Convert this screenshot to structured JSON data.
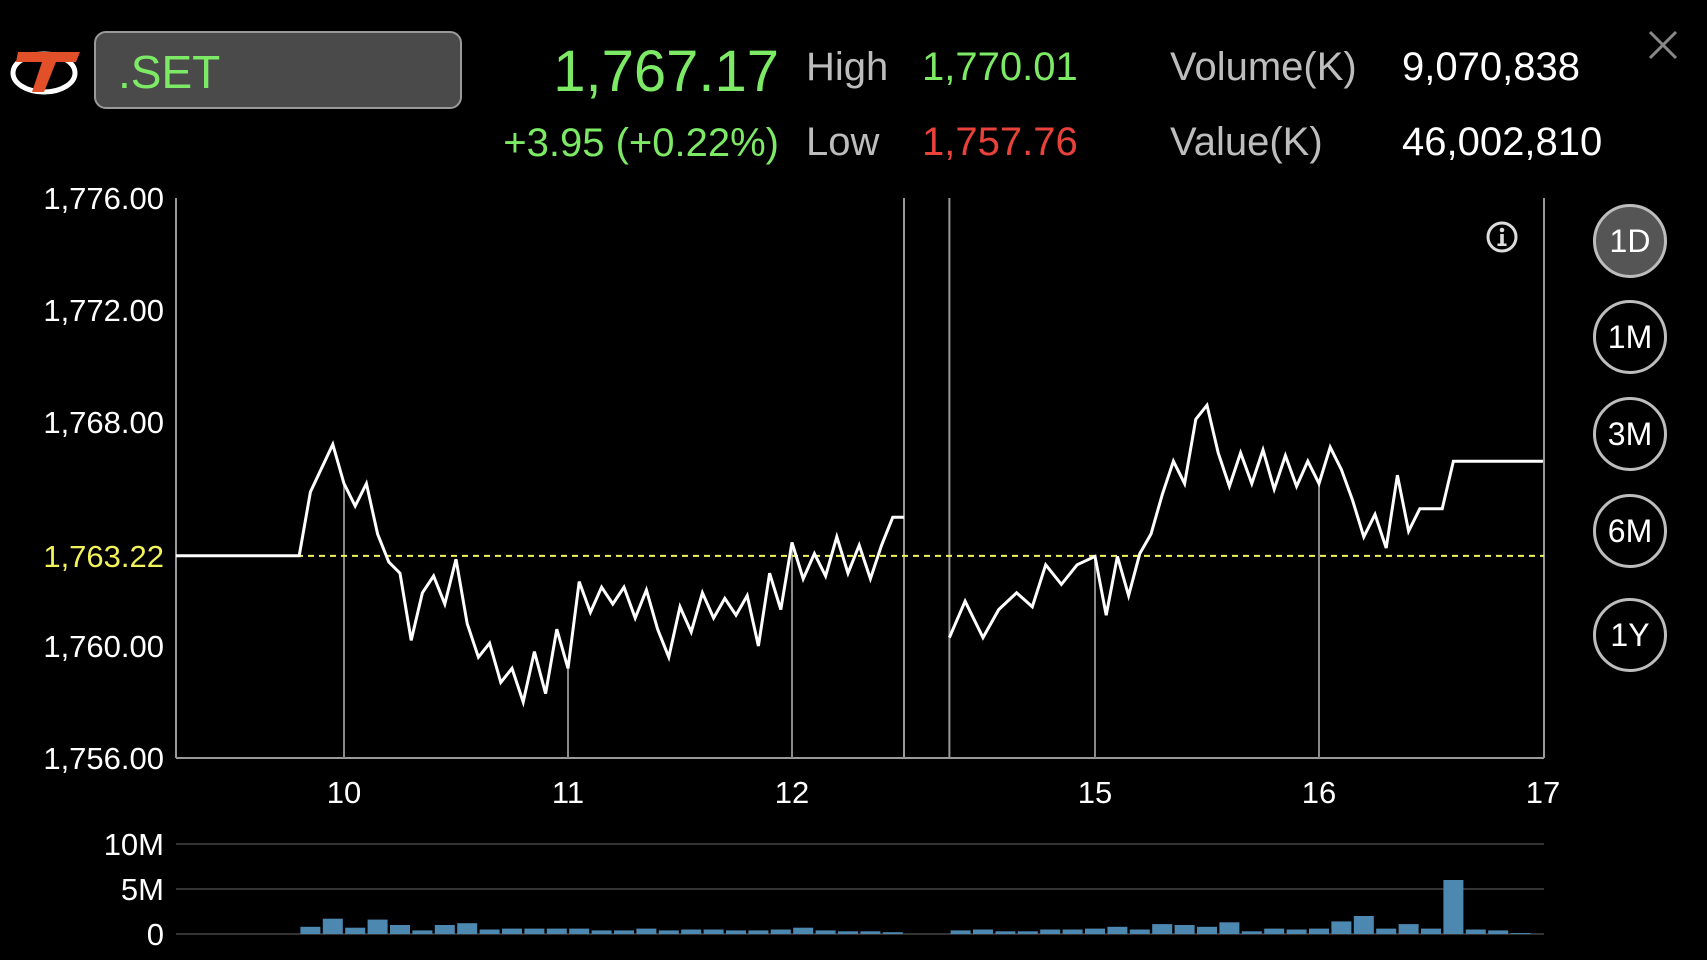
{
  "header": {
    "symbol": ".SET",
    "price": "1,767.17",
    "change": "+3.95 (+0.22%)",
    "high_label": "High",
    "high_value": "1,770.01",
    "low_label": "Low",
    "low_value": "1,757.76",
    "volume_label": "Volume(K)",
    "volume_value": "9,070,838",
    "value_label": "Value(K)",
    "value_value": "46,002,810"
  },
  "colors": {
    "up": "#7dea66",
    "down": "#e8423a",
    "prev_close": "#f2f25a",
    "volume_bar": "#4d88b0",
    "line": "#ffffff"
  },
  "periods": [
    {
      "label": "1D",
      "active": true
    },
    {
      "label": "1M",
      "active": false
    },
    {
      "label": "3M",
      "active": false
    },
    {
      "label": "6M",
      "active": false
    },
    {
      "label": "1Y",
      "active": false
    }
  ],
  "chart_data": {
    "type": "line",
    "ylim": [
      1756,
      1776
    ],
    "y_ticks": [
      "1,776.00",
      "1,772.00",
      "1,768.00",
      "1,760.00",
      "1,756.00"
    ],
    "y_tick_values": [
      1776,
      1772,
      1768,
      1760,
      1756
    ],
    "prev_close": 1763.22,
    "prev_close_label": "1,763.22",
    "x_ticks": [
      "10",
      "11",
      "12",
      "15",
      "16",
      "17"
    ],
    "x_tick_hours": [
      10,
      11,
      12,
      15,
      16,
      17
    ],
    "time_range": [
      9.25,
      17
    ],
    "lunch_break": [
      12.5,
      14.35
    ],
    "series": [
      {
        "x": [
          9.25,
          9.35,
          9.5,
          9.65,
          9.8,
          9.85,
          9.95,
          10.0,
          10.05,
          10.1,
          10.15,
          10.2,
          10.25,
          10.3,
          10.35,
          10.4,
          10.45,
          10.5,
          10.55,
          10.6,
          10.65,
          10.7,
          10.75,
          10.8,
          10.85,
          10.9,
          10.95,
          11.0,
          11.05,
          11.1,
          11.15,
          11.2,
          11.25,
          11.3,
          11.35,
          11.4,
          11.45,
          11.5,
          11.55,
          11.6,
          11.65,
          11.7,
          11.75,
          11.8,
          11.85,
          11.9,
          11.95,
          12.0,
          12.05,
          12.1,
          12.15,
          12.2,
          12.25,
          12.3,
          12.35,
          12.4,
          12.45,
          12.5
        ],
        "y": [
          1763.22,
          1763.22,
          1763.22,
          1763.22,
          1763.22,
          1765.5,
          1767.2,
          1765.8,
          1765.0,
          1765.8,
          1764.0,
          1763.0,
          1762.6,
          1760.2,
          1761.9,
          1762.5,
          1761.5,
          1763.1,
          1760.8,
          1759.6,
          1760.1,
          1758.7,
          1759.2,
          1758.0,
          1759.8,
          1758.3,
          1760.6,
          1759.2,
          1762.3,
          1761.2,
          1762.1,
          1761.5,
          1762.1,
          1761.0,
          1762.0,
          1760.6,
          1759.6,
          1761.4,
          1760.5,
          1761.9,
          1761.0,
          1761.7,
          1761.1,
          1761.8,
          1760.0,
          1762.6,
          1761.3,
          1763.7,
          1762.4,
          1763.3,
          1762.5,
          1763.9,
          1762.6,
          1763.6,
          1762.4,
          1763.6,
          1764.6,
          1764.6
        ]
      },
      {
        "x": [
          14.35,
          14.42,
          14.5,
          14.57,
          14.65,
          14.72,
          14.78,
          14.85,
          14.92,
          15.0,
          15.05,
          15.1,
          15.15,
          15.2,
          15.25,
          15.3,
          15.35,
          15.4,
          15.45,
          15.5,
          15.55,
          15.6,
          15.65,
          15.7,
          15.75,
          15.8,
          15.85,
          15.9,
          15.95,
          16.0,
          16.05,
          16.1,
          16.15,
          16.2,
          16.25,
          16.3,
          16.35,
          16.4,
          16.45,
          16.5,
          16.55,
          16.6,
          16.65,
          16.7,
          16.75,
          16.8,
          16.85,
          16.9,
          16.95,
          17.0
        ],
        "y": [
          1760.3,
          1761.6,
          1760.3,
          1761.3,
          1761.9,
          1761.4,
          1762.9,
          1762.2,
          1762.9,
          1763.2,
          1761.1,
          1763.2,
          1761.8,
          1763.3,
          1764.0,
          1765.4,
          1766.6,
          1765.8,
          1768.1,
          1768.6,
          1766.9,
          1765.7,
          1766.9,
          1765.8,
          1767.0,
          1765.6,
          1766.8,
          1765.7,
          1766.6,
          1765.8,
          1767.1,
          1766.3,
          1765.2,
          1763.9,
          1764.7,
          1763.5,
          1766.1,
          1764.1,
          1764.9,
          1764.9,
          1764.9,
          1766.6,
          1766.6,
          1766.6,
          1766.6,
          1766.6,
          1766.6,
          1766.6,
          1766.6,
          1766.6
        ]
      }
    ],
    "volume": {
      "ylim": [
        0,
        10
      ],
      "y_ticks": [
        "10M",
        "5M",
        "0"
      ],
      "y_tick_values": [
        10,
        5,
        0
      ],
      "unit": "M",
      "x": [
        9.85,
        9.95,
        10.05,
        10.15,
        10.25,
        10.35,
        10.45,
        10.55,
        10.65,
        10.75,
        10.85,
        10.95,
        11.05,
        11.15,
        11.25,
        11.35,
        11.45,
        11.55,
        11.65,
        11.75,
        11.85,
        11.95,
        12.05,
        12.15,
        12.25,
        12.35,
        12.45,
        14.4,
        14.5,
        14.6,
        14.7,
        14.8,
        14.9,
        15.0,
        15.1,
        15.2,
        15.3,
        15.4,
        15.5,
        15.6,
        15.7,
        15.8,
        15.9,
        16.0,
        16.1,
        16.2,
        16.3,
        16.4,
        16.5,
        16.6,
        16.7,
        16.8,
        16.9
      ],
      "values": [
        0.8,
        1.7,
        0.7,
        1.6,
        1.0,
        0.4,
        1.0,
        1.2,
        0.5,
        0.6,
        0.6,
        0.6,
        0.6,
        0.4,
        0.4,
        0.6,
        0.4,
        0.5,
        0.5,
        0.4,
        0.4,
        0.5,
        0.7,
        0.4,
        0.3,
        0.3,
        0.2,
        0.4,
        0.5,
        0.3,
        0.3,
        0.5,
        0.5,
        0.6,
        0.8,
        0.5,
        1.1,
        1.0,
        0.8,
        1.3,
        0.3,
        0.6,
        0.5,
        0.6,
        1.4,
        2.0,
        0.6,
        1.1,
        0.6,
        6.0,
        0.5,
        0.4,
        0.1
      ]
    }
  }
}
